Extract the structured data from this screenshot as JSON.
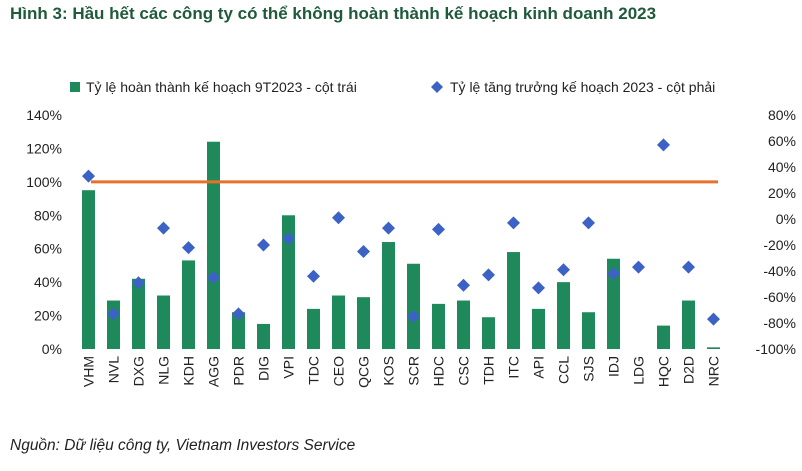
{
  "title": "Hình 3: Hầu hết các công ty có thể không hoàn thành kế hoạch kinh doanh 2023",
  "source": "Nguồn: Dữ liệu công ty, Vietnam Investors Service",
  "colors": {
    "bar": "#1e8a5c",
    "diamond": "#3b62c4",
    "line": "#e8712a",
    "title": "#1f5a3a"
  },
  "chart_data": {
    "type": "bar",
    "categories": [
      "VHM",
      "NVL",
      "DXG",
      "NLG",
      "KDH",
      "AGG",
      "PDR",
      "DIG",
      "VPI",
      "TDC",
      "CEO",
      "QCG",
      "KOS",
      "SCR",
      "HDC",
      "CSC",
      "TDH",
      "ITC",
      "API",
      "CCL",
      "SJS",
      "IDJ",
      "LDG",
      "HQC",
      "D2D",
      "NRC"
    ],
    "series": [
      {
        "name": "Tỷ lệ hoàn thành kế hoạch 9T2023 - cột trái",
        "kind": "bar",
        "axis": "left",
        "values": [
          95,
          29,
          42,
          32,
          53,
          124,
          22,
          15,
          80,
          24,
          32,
          31,
          64,
          51,
          27,
          29,
          19,
          58,
          24,
          40,
          22,
          54,
          0,
          14,
          29,
          1
        ]
      },
      {
        "name": "Tỷ lệ tăng trưởng kế hoạch 2023 - cột phải",
        "kind": "scatter",
        "marker": "diamond",
        "axis": "right",
        "values": [
          33,
          -73,
          -49,
          -7,
          -22,
          -45,
          -73,
          -20,
          -15,
          -44,
          1,
          -25,
          -7,
          -75,
          -8,
          -51,
          -43,
          -3,
          -53,
          -39,
          -3,
          -42,
          -37,
          57,
          -37,
          -77
        ]
      },
      {
        "kind": "hline",
        "axis": "left",
        "value": 100
      }
    ],
    "left_axis": {
      "ylim": [
        0,
        140
      ],
      "ticks": [
        0,
        20,
        40,
        60,
        80,
        100,
        120,
        140
      ],
      "tick_labels": [
        "0%",
        "20%",
        "40%",
        "60%",
        "80%",
        "100%",
        "120%",
        "140%"
      ]
    },
    "right_axis": {
      "ylim": [
        -100,
        80
      ],
      "ticks": [
        -100,
        -80,
        -60,
        -40,
        -20,
        0,
        20,
        40,
        60,
        80
      ],
      "tick_labels": [
        "-100%",
        "-80%",
        "-60%",
        "-40%",
        "-20%",
        "0%",
        "20%",
        "40%",
        "60%",
        "80%"
      ]
    },
    "legend_position": "top",
    "grid": false
  }
}
